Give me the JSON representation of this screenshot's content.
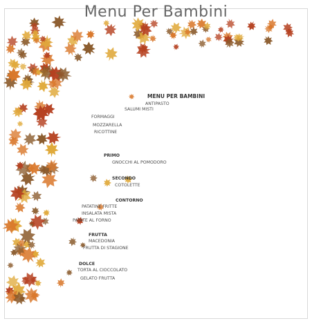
{
  "header": {
    "title": "Menu Per Bambini"
  },
  "menu": {
    "title": "MENU PER BAMBINI",
    "antipasti": [
      "ANTIPASTO",
      "SALUMI MISTI",
      "FORMAGGI",
      "MOZZARELLA",
      "RICOTTINE"
    ],
    "primo": {
      "title": "PRIMO",
      "items": [
        "GNOCCHI AL POMODORO"
      ]
    },
    "secondo": {
      "title": "SECONDO",
      "items": [
        "COTOLETTE"
      ]
    },
    "contorno": {
      "title": "CONTORNO",
      "items": [
        "PATATINE FRITTE",
        "INSALATA MISTA",
        "PATATE AL FORNO"
      ]
    },
    "frutta": {
      "title": "FRUTTA",
      "items": [
        "MACEDONIA",
        "FRUTTA DI STAGIONE"
      ]
    },
    "dolce": {
      "title": "DOLCE",
      "items": [
        "TORTA AL CIOCCOLATO",
        "GELATO FRUTTA"
      ]
    }
  },
  "colors": {
    "leaf_orange": "#d9772a",
    "leaf_red": "#b5401f",
    "leaf_gold": "#e0a93a",
    "leaf_brown": "#8a5a2b"
  }
}
